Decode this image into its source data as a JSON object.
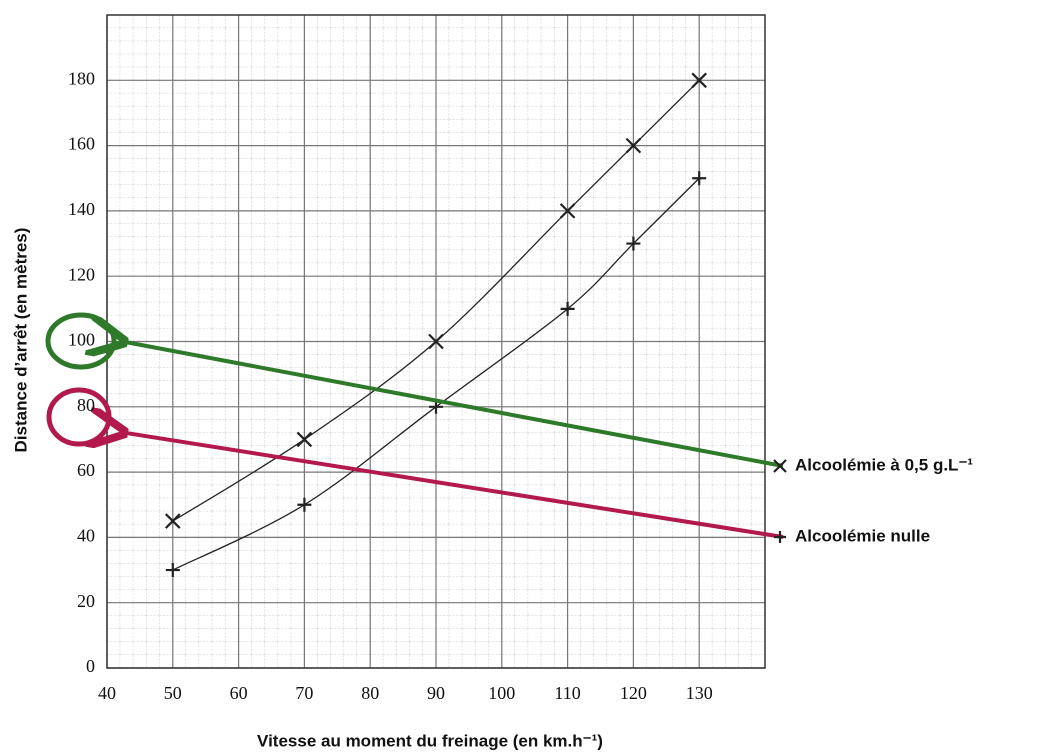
{
  "chart_data": {
    "type": "line",
    "x_label": "Vitesse au moment du freinage (en km.h⁻¹)",
    "y_label": "Distance d’arrêt (en mètres)",
    "x": [
      50,
      70,
      90,
      110,
      120,
      130
    ],
    "series": [
      {
        "name": "Alcoolémie à 0,5 g.L⁻¹",
        "color": "#222222",
        "marker": "x",
        "values": [
          45,
          70,
          100,
          140,
          160,
          180
        ]
      },
      {
        "name": "Alcoolémie nulle",
        "color": "#222222",
        "marker": "+",
        "values": [
          30,
          50,
          80,
          110,
          130,
          150
        ]
      }
    ],
    "xlim": [
      40,
      140
    ],
    "ylim": [
      0,
      200
    ],
    "xticks": [
      40,
      50,
      60,
      70,
      80,
      90,
      100,
      110,
      120,
      130
    ],
    "yticks": [
      0,
      20,
      40,
      60,
      80,
      100,
      120,
      140,
      160,
      180
    ],
    "grid": true
  }
}
